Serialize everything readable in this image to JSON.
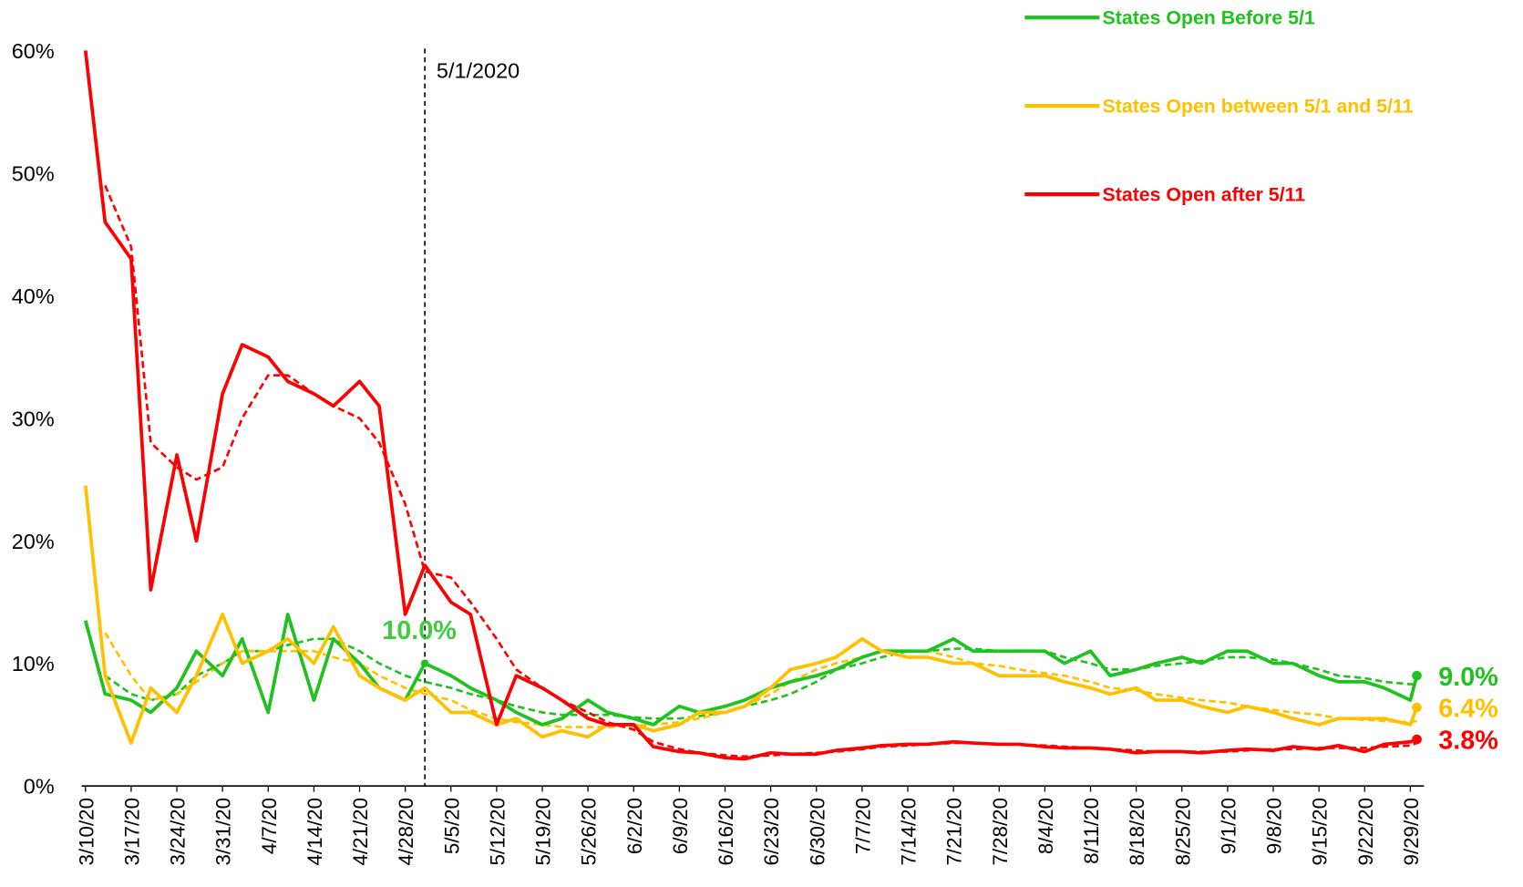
{
  "chart_data": {
    "type": "line",
    "x": [
      "3/10/20",
      "3/13/20",
      "3/17/20",
      "3/20/20",
      "3/24/20",
      "3/27/20",
      "3/31/20",
      "4/3/20",
      "4/7/20",
      "4/10/20",
      "4/14/20",
      "4/17/20",
      "4/21/20",
      "4/24/20",
      "4/28/20",
      "5/1/20",
      "5/5/20",
      "5/8/20",
      "5/12/20",
      "5/15/20",
      "5/19/20",
      "5/22/20",
      "5/26/20",
      "5/29/20",
      "6/2/20",
      "6/5/20",
      "6/9/20",
      "6/12/20",
      "6/16/20",
      "6/19/20",
      "6/23/20",
      "6/26/20",
      "6/30/20",
      "7/3/20",
      "7/7/20",
      "7/10/20",
      "7/14/20",
      "7/17/20",
      "7/21/20",
      "7/24/20",
      "7/28/20",
      "7/31/20",
      "8/4/20",
      "8/7/20",
      "8/11/20",
      "8/14/20",
      "8/18/20",
      "8/21/20",
      "8/25/20",
      "8/28/20",
      "9/1/20",
      "9/4/20",
      "9/8/20",
      "9/11/20",
      "9/15/20",
      "9/18/20",
      "9/22/20",
      "9/25/20",
      "9/29/20",
      "9/30/20"
    ],
    "series": [
      {
        "name": "States Open Before 5/1",
        "color": "#1fc21f",
        "values": [
          13.5,
          7.5,
          7,
          6,
          8,
          11,
          9,
          12,
          6,
          14,
          7,
          12,
          10,
          8,
          7,
          10,
          9,
          8,
          7,
          6,
          5,
          5.5,
          7,
          6,
          5.5,
          5,
          6.5,
          6,
          6.5,
          7,
          8,
          8.5,
          9,
          9.5,
          10.5,
          11,
          11,
          11,
          12,
          11,
          11,
          11,
          11,
          10,
          11,
          9,
          9.5,
          10,
          10.5,
          10,
          11,
          11,
          10,
          10,
          9,
          8.5,
          8.5,
          8,
          7,
          9.0
        ],
        "ma_values": [
          null,
          9,
          7.5,
          7,
          7.5,
          9,
          10,
          11,
          11,
          11.5,
          12,
          12,
          11,
          10,
          9,
          8.5,
          8,
          7.5,
          7,
          6.5,
          6,
          5.8,
          5.8,
          5.8,
          5.6,
          5.5,
          5.5,
          5.7,
          6,
          6.5,
          7,
          7.5,
          8.5,
          9.5,
          10,
          10.5,
          11,
          11,
          11.2,
          11.2,
          11,
          11,
          11,
          10.5,
          10,
          9.5,
          9.5,
          9.8,
          10,
          10.2,
          10.5,
          10.5,
          10.3,
          10,
          9.5,
          9,
          8.8,
          8.5,
          8.3,
          8.3
        ],
        "end_label": {
          "value": 9.0,
          "label": "9.0%"
        }
      },
      {
        "name": "States Open between 5/1 and 5/11",
        "color": "#ffc000",
        "values": [
          24.5,
          9,
          3.5,
          8,
          6,
          9,
          14,
          10,
          11,
          12,
          10,
          13,
          9,
          8,
          7,
          8,
          6,
          6,
          5,
          5.5,
          4,
          4.5,
          4,
          5,
          5,
          4.5,
          5,
          6,
          6,
          6.5,
          8,
          9.5,
          10,
          10.5,
          12,
          11,
          10.5,
          10.5,
          10,
          10,
          9,
          9,
          9,
          8.5,
          8,
          7.5,
          8,
          7,
          7,
          6.5,
          6,
          6.5,
          6,
          5.5,
          5,
          5.5,
          5.5,
          5.5,
          5,
          6.4
        ],
        "ma_values": [
          null,
          12.5,
          9,
          7,
          7.5,
          8.5,
          10,
          11,
          11,
          11,
          11,
          10.5,
          10,
          9,
          8,
          7.5,
          7,
          6.2,
          5.5,
          5.2,
          5,
          4.8,
          4.8,
          4.8,
          4.9,
          5,
          5.2,
          5.5,
          6,
          6.5,
          7.5,
          8.5,
          9.5,
          10,
          10.5,
          11,
          11,
          11,
          10.5,
          10,
          9.8,
          9.5,
          9.2,
          9,
          8.5,
          8,
          7.8,
          7.5,
          7.2,
          7,
          6.8,
          6.5,
          6.2,
          6,
          5.8,
          5.5,
          5.4,
          5.3,
          5.2,
          5.3
        ],
        "end_label": {
          "value": 6.4,
          "label": "6.4%"
        }
      },
      {
        "name": "States Open after 5/11",
        "color": "#ff0000",
        "values": [
          60,
          46,
          43,
          16,
          27,
          20,
          32,
          36,
          35,
          33,
          32,
          31,
          33,
          31,
          14,
          18,
          15,
          14,
          5,
          9,
          8,
          7,
          5.5,
          5,
          5,
          3.2,
          2.8,
          2.7,
          2.3,
          2.2,
          2.7,
          2.6,
          2.6,
          2.9,
          3.1,
          3.3,
          3.4,
          3.4,
          3.6,
          3.5,
          3.4,
          3.4,
          3.2,
          3.1,
          3.1,
          3.0,
          2.7,
          2.8,
          2.8,
          2.7,
          2.9,
          3.0,
          2.9,
          3.2,
          3.0,
          3.3,
          2.8,
          3.4,
          3.6,
          3.8
        ],
        "ma_values": [
          null,
          49,
          44,
          28,
          26,
          25,
          26,
          30,
          33.5,
          33.5,
          32,
          31,
          30,
          28,
          23,
          17.5,
          17,
          15,
          12,
          9.5,
          8,
          7,
          6,
          5.2,
          4.6,
          3.6,
          3,
          2.7,
          2.5,
          2.4,
          2.5,
          2.6,
          2.7,
          2.8,
          3,
          3.2,
          3.3,
          3.4,
          3.5,
          3.5,
          3.4,
          3.4,
          3.3,
          3.2,
          3.1,
          3,
          2.9,
          2.8,
          2.8,
          2.8,
          2.8,
          2.9,
          3,
          3,
          3.1,
          3.1,
          3.1,
          3.2,
          3.3,
          3.5
        ],
        "end_label": {
          "value": 3.8,
          "label": "3.8%"
        }
      }
    ],
    "xticks": [
      "3/10/20",
      "3/17/20",
      "3/24/20",
      "3/31/20",
      "4/7/20",
      "4/14/20",
      "4/21/20",
      "4/28/20",
      "5/5/20",
      "5/12/20",
      "5/19/20",
      "5/26/20",
      "6/2/20",
      "6/9/20",
      "6/16/20",
      "6/23/20",
      "6/30/20",
      "7/7/20",
      "7/14/20",
      "7/21/20",
      "7/28/20",
      "8/4/20",
      "8/11/20",
      "8/18/20",
      "8/25/20",
      "9/1/20",
      "9/8/20",
      "9/15/20",
      "9/22/20",
      "9/29/20"
    ],
    "ylim": [
      0,
      60
    ],
    "yticks": [
      {
        "value": 0,
        "label": "0%"
      },
      {
        "value": 10,
        "label": "10%"
      },
      {
        "value": 20,
        "label": "20%"
      },
      {
        "value": 30,
        "label": "30%"
      },
      {
        "value": 40,
        "label": "40%"
      },
      {
        "value": 50,
        "label": "50%"
      },
      {
        "value": 60,
        "label": "60%"
      }
    ],
    "vline": {
      "x": "5/1/2020",
      "label": "5/1/2020"
    },
    "annotation": {
      "x": "5/1/20",
      "value": 10.0,
      "label": "10.0%",
      "color": "#1fc21f"
    },
    "legend": "top-right"
  }
}
